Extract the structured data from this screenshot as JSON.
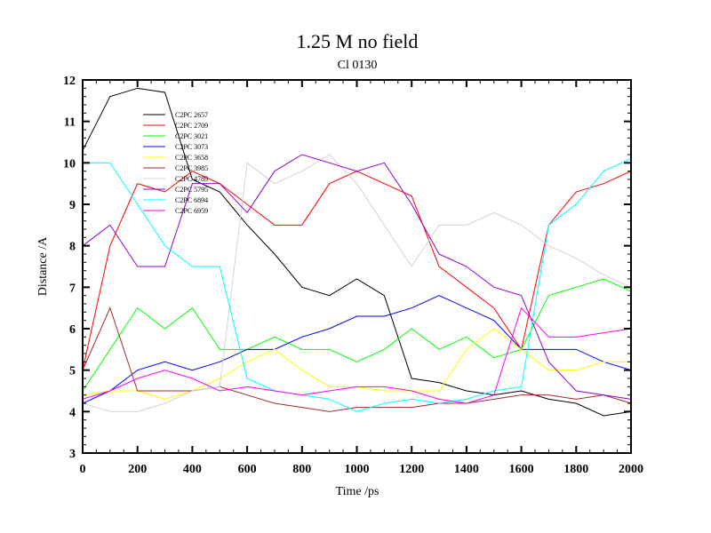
{
  "chart_data": {
    "type": "line",
    "title": "1.25 M no field",
    "subtitle": "Cl 0130",
    "xlabel": "Time /ps",
    "ylabel": "Distance /A",
    "xlim": [
      0,
      2000
    ],
    "ylim": [
      3,
      12
    ],
    "xticks": [
      0,
      200,
      400,
      600,
      800,
      1000,
      1200,
      1400,
      1600,
      1800,
      2000
    ],
    "yticks": [
      3,
      4,
      5,
      6,
      7,
      8,
      9,
      10,
      11,
      12
    ],
    "grid": false,
    "legend_position": "top-left",
    "x": [
      0,
      100,
      200,
      300,
      400,
      500,
      600,
      700,
      800,
      900,
      1000,
      1100,
      1200,
      1300,
      1400,
      1500,
      1600,
      1700,
      1800,
      1900,
      2000
    ],
    "series": [
      {
        "name": "C2PC 2657",
        "color": "#000000",
        "values": [
          10.3,
          11.6,
          11.8,
          11.7,
          9.6,
          9.3,
          8.5,
          7.8,
          7.0,
          6.8,
          7.2,
          6.8,
          4.8,
          4.7,
          4.5,
          4.4,
          4.5,
          4.3,
          4.2,
          3.9,
          4.0
        ]
      },
      {
        "name": "C2PC 2709",
        "color": "#ff0000",
        "values": [
          5.0,
          8.0,
          9.5,
          9.3,
          9.8,
          9.5,
          9.0,
          8.5,
          8.5,
          9.5,
          9.8,
          9.5,
          9.2,
          7.5,
          7.0,
          6.5,
          5.5,
          8.5,
          9.3,
          9.5,
          9.8
        ]
      },
      {
        "name": "C2PC 3021",
        "color": "#00ff00",
        "values": [
          4.5,
          5.5,
          6.5,
          6.0,
          6.5,
          5.5,
          5.5,
          5.8,
          5.5,
          5.5,
          5.2,
          5.5,
          6.0,
          5.5,
          5.8,
          5.3,
          5.5,
          6.8,
          7.0,
          7.2,
          6.9
        ]
      },
      {
        "name": "C2PC 3073",
        "color": "#0000ff",
        "values": [
          4.2,
          4.5,
          5.0,
          5.2,
          5.0,
          5.2,
          5.5,
          5.5,
          5.8,
          6.0,
          6.3,
          6.3,
          6.5,
          6.8,
          6.5,
          6.2,
          5.5,
          5.5,
          5.5,
          5.2,
          5.0
        ]
      },
      {
        "name": "C2PC 3658",
        "color": "#ffff00",
        "values": [
          4.4,
          4.5,
          4.5,
          4.3,
          4.5,
          4.8,
          5.2,
          5.5,
          5.0,
          4.6,
          4.6,
          4.5,
          4.5,
          4.5,
          5.5,
          6.0,
          5.5,
          5.0,
          5.0,
          5.2,
          5.2
        ]
      },
      {
        "name": "C2PC 3985",
        "color": "#a52a2a",
        "values": [
          5.0,
          6.5,
          4.5,
          4.5,
          4.5,
          4.6,
          4.4,
          4.2,
          4.1,
          4.0,
          4.1,
          4.1,
          4.1,
          4.2,
          4.2,
          4.3,
          4.4,
          4.4,
          4.3,
          4.4,
          4.2
        ]
      },
      {
        "name": "C2PC 4789",
        "color": "#d3d3d3",
        "values": [
          4.2,
          4.0,
          4.0,
          4.2,
          4.5,
          4.6,
          10.0,
          9.5,
          9.8,
          10.2,
          9.5,
          8.5,
          7.5,
          8.5,
          8.5,
          8.8,
          8.5,
          8.0,
          7.7,
          7.3,
          7.0
        ]
      },
      {
        "name": "C2PC 5795",
        "color": "#9400d3",
        "values": [
          8.0,
          8.5,
          7.5,
          7.5,
          9.5,
          9.5,
          8.8,
          9.8,
          10.2,
          10.0,
          9.8,
          10.0,
          9.0,
          7.8,
          7.5,
          7.0,
          6.8,
          5.2,
          4.5,
          4.4,
          4.3
        ]
      },
      {
        "name": "C2PC 6894",
        "color": "#00ffff",
        "values": [
          10.0,
          10.0,
          9.0,
          8.0,
          7.5,
          7.5,
          4.8,
          4.5,
          4.4,
          4.3,
          4.0,
          4.2,
          4.3,
          4.2,
          4.3,
          4.5,
          4.6,
          8.5,
          9.0,
          9.8,
          10.1
        ]
      },
      {
        "name": "C2PC 6959",
        "color": "#ff00ff",
        "values": [
          4.3,
          4.5,
          4.8,
          5.0,
          4.8,
          4.5,
          4.6,
          4.5,
          4.4,
          4.5,
          4.6,
          4.6,
          4.5,
          4.3,
          4.2,
          4.4,
          6.5,
          5.8,
          5.8,
          5.9,
          6.0
        ]
      }
    ]
  }
}
